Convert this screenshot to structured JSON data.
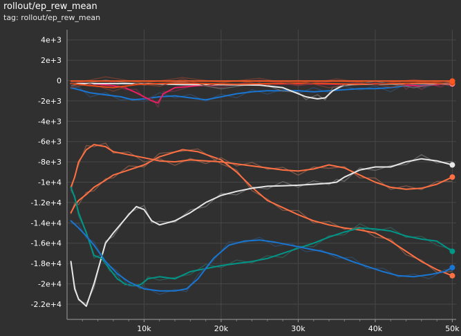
{
  "title": "rollout/ep_rew_mean",
  "tag": "tag: rollout/ep_rew_mean",
  "chart_data": {
    "type": "line",
    "title": "rollout/ep_rew_mean",
    "xlabel": "",
    "ylabel": "",
    "xlim": [
      0,
      50500
    ],
    "ylim": [
      -23500,
      5000
    ],
    "grid": true,
    "x_ticks": [
      {
        "value": 10000,
        "label": "10k"
      },
      {
        "value": 20000,
        "label": "20k"
      },
      {
        "value": 30000,
        "label": "30k"
      },
      {
        "value": 40000,
        "label": "40k"
      },
      {
        "value": 50000,
        "label": "50k"
      }
    ],
    "y_ticks": [
      {
        "value": 4000,
        "label": "4e+3"
      },
      {
        "value": 2000,
        "label": "2e+3"
      },
      {
        "value": 0,
        "label": "0"
      },
      {
        "value": -2000,
        "label": "-2e+3"
      },
      {
        "value": -4000,
        "label": "-4e+3"
      },
      {
        "value": -6000,
        "label": "-6e+3"
      },
      {
        "value": -8000,
        "label": "-8e+3"
      },
      {
        "value": -10000,
        "label": "-1e+4"
      },
      {
        "value": -12000,
        "label": "-1.2e+4"
      },
      {
        "value": -14000,
        "label": "-1.4e+4"
      },
      {
        "value": -16000,
        "label": "-1.6e+4"
      },
      {
        "value": -18000,
        "label": "-1.8e+4"
      },
      {
        "value": -20000,
        "label": "-2e+4"
      },
      {
        "value": -22000,
        "label": "-2.2e+4"
      }
    ],
    "series": [
      {
        "color": "#ff7043",
        "raw_color": "#8a5a48",
        "end_marker": true,
        "x": [
          500,
          1000,
          1500,
          2500,
          3500,
          5000,
          6000,
          8000,
          10000,
          12000,
          15000,
          17000,
          20000,
          22000,
          24000,
          26000,
          28000,
          30000,
          32000,
          34000,
          36000,
          38000,
          40000,
          42000,
          44000,
          46000,
          48000,
          50000
        ],
        "y": [
          -13000,
          -12300,
          -11800,
          -11200,
          -10500,
          -9800,
          -9300,
          -8800,
          -8300,
          -7500,
          -6800,
          -7000,
          -7800,
          -9000,
          -10500,
          -11800,
          -12500,
          -13200,
          -13800,
          -14200,
          -14500,
          -14700,
          -15000,
          -15800,
          -16800,
          -17800,
          -18600,
          -19200
        ]
      },
      {
        "color": "#ff7043",
        "raw_color": "#8a5a48",
        "end_marker": true,
        "x": [
          500,
          1000,
          1500,
          2500,
          3500,
          5000,
          6000,
          8000,
          10000,
          12000,
          14000,
          16000,
          18000,
          20000,
          22000,
          24000,
          26000,
          28000,
          30000,
          32000,
          34000,
          36000,
          38000,
          40000,
          42000,
          44000,
          46000,
          48000,
          50000
        ],
        "y": [
          -10500,
          -9500,
          -8000,
          -6800,
          -6300,
          -6500,
          -7000,
          -7300,
          -7600,
          -7900,
          -8000,
          -7800,
          -7900,
          -8000,
          -8200,
          -8400,
          -8600,
          -8800,
          -8900,
          -8700,
          -8300,
          -8600,
          -9300,
          -10000,
          -10500,
          -10700,
          -10600,
          -10200,
          -9500
        ]
      },
      {
        "color": "#e8e8e8",
        "raw_color": "#6e6e6e",
        "end_marker": true,
        "x": [
          500,
          1000,
          1500,
          2500,
          3500,
          5000,
          6000,
          8000,
          9000,
          10000,
          11000,
          12000,
          14000,
          16000,
          18000,
          20000,
          22000,
          24000,
          26000,
          28000,
          30000,
          32000,
          34000,
          35000,
          36000,
          38000,
          40000,
          42000,
          44000,
          46000,
          48000,
          50000
        ],
        "y": [
          -17800,
          -20500,
          -21500,
          -22200,
          -20000,
          -16000,
          -15000,
          -13200,
          -12400,
          -12700,
          -13800,
          -14200,
          -13800,
          -13000,
          -12000,
          -11300,
          -10900,
          -10600,
          -10400,
          -10350,
          -10300,
          -10200,
          -10100,
          -10000,
          -9500,
          -8800,
          -8500,
          -8500,
          -8000,
          -7700,
          -7900,
          -8300
        ]
      },
      {
        "color": "#009688",
        "raw_color": "#2e5e58",
        "end_marker": true,
        "x": [
          500,
          1000,
          1500,
          2500,
          3500,
          4500,
          5500,
          6500,
          7500,
          8500,
          9500,
          10500,
          12000,
          14000,
          16000,
          18000,
          20000,
          22000,
          24000,
          26000,
          28000,
          30000,
          32000,
          34000,
          36000,
          38000,
          40000,
          42000,
          44000,
          46000,
          48000,
          50000
        ],
        "y": [
          -10500,
          -11500,
          -13000,
          -15000,
          -17200,
          -17500,
          -18500,
          -19500,
          -20000,
          -20200,
          -20100,
          -19500,
          -19300,
          -19500,
          -18800,
          -18500,
          -18200,
          -18000,
          -17800,
          -17500,
          -17000,
          -16500,
          -16000,
          -15400,
          -14900,
          -14500,
          -14600,
          -14800,
          -15300,
          -15600,
          -15800,
          -16800
        ]
      },
      {
        "color": "#1976d2",
        "raw_color": "#304a66",
        "end_marker": true,
        "x": [
          500,
          1500,
          2500,
          3500,
          5000,
          6500,
          8000,
          10000,
          12000,
          14000,
          15500,
          17000,
          19000,
          21000,
          23000,
          25000,
          27000,
          29000,
          31000,
          33000,
          35000,
          37000,
          39000,
          41000,
          43000,
          45000,
          47000,
          49000,
          50000
        ],
        "y": [
          -13800,
          -14500,
          -15300,
          -16200,
          -17800,
          -19000,
          -19800,
          -20500,
          -20700,
          -20700,
          -20500,
          -19500,
          -17500,
          -16200,
          -15800,
          -15700,
          -15900,
          -16200,
          -16500,
          -16800,
          -17200,
          -17800,
          -18300,
          -18800,
          -19200,
          -19300,
          -19100,
          -18800,
          -18400
        ]
      },
      {
        "color": "#1976d2",
        "raw_color": "#304a66",
        "end_marker": false,
        "x": [
          500,
          1500,
          3000,
          5000,
          7000,
          8500,
          10000,
          12000,
          14000,
          16000,
          18000,
          20000,
          22000,
          24000,
          26000,
          28000,
          30000,
          32000,
          34000,
          36000,
          38000,
          40000,
          42000,
          44000,
          46000,
          48000,
          50000
        ],
        "y": [
          -700,
          -900,
          -1200,
          -1400,
          -1600,
          -1900,
          -1800,
          -1600,
          -1500,
          -1700,
          -1900,
          -1600,
          -1300,
          -1100,
          -1000,
          -1000,
          -1000,
          -1100,
          -1000,
          -900,
          -800,
          -800,
          -700,
          -500,
          -500,
          -400,
          -300
        ]
      },
      {
        "color": "#e91e63",
        "raw_color": "#6e3448",
        "end_marker": true,
        "x": [
          500,
          2000,
          4000,
          6000,
          7500,
          9000,
          10000,
          11000,
          11800,
          12500,
          14000,
          17000,
          20000,
          25000,
          30000,
          35000,
          40000,
          43000,
          44000,
          45000,
          46000,
          47000,
          48500,
          50000
        ],
        "y": [
          -300,
          -300,
          -350,
          -500,
          -700,
          -1200,
          -1600,
          -2000,
          -2200,
          -1300,
          -700,
          -500,
          -400,
          -350,
          -300,
          -350,
          -300,
          -300,
          -450,
          -500,
          -550,
          -450,
          -380,
          -350
        ]
      },
      {
        "color": "#e8e8e8",
        "raw_color": "#6e6e6e",
        "end_marker": true,
        "x": [
          500,
          5000,
          10000,
          15000,
          20000,
          25000,
          28000,
          30000,
          31000,
          32500,
          33500,
          34500,
          36000,
          40000,
          45000,
          50000
        ],
        "y": [
          -300,
          -300,
          -300,
          -400,
          -400,
          -450,
          -700,
          -1300,
          -1600,
          -1800,
          -1700,
          -1000,
          -400,
          -350,
          -300,
          -300
        ]
      },
      {
        "color": "#e64a19",
        "raw_color": "#7a4030",
        "end_marker": true,
        "x": [
          500,
          3000,
          6000,
          9000,
          12000,
          15000,
          18000,
          22000,
          26000,
          30000,
          34000,
          38000,
          42000,
          46000,
          50000
        ],
        "y": [
          -300,
          -500,
          -700,
          -400,
          -300,
          -250,
          -300,
          -350,
          -300,
          -250,
          -300,
          -350,
          -300,
          -250,
          -250
        ]
      },
      {
        "color": "#ff5722",
        "raw_color": "#7a4030",
        "end_marker": true,
        "x": [
          500,
          5000,
          10000,
          15000,
          20000,
          25000,
          30000,
          35000,
          40000,
          45000,
          50000
        ],
        "y": [
          -50,
          -50,
          -50,
          -50,
          -50,
          -50,
          -50,
          -50,
          -50,
          -50,
          -50
        ]
      }
    ]
  }
}
